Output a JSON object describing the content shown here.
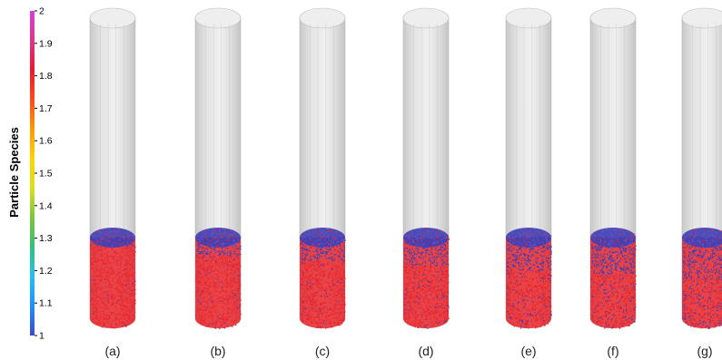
{
  "colorbar": {
    "title": "Particle Species",
    "ticks": [
      "2",
      "1.9",
      "1.8",
      "1.7",
      "1.6",
      "1.5",
      "1.4",
      "1.3",
      "1.2",
      "1.1",
      "1"
    ],
    "min": 1,
    "max": 2,
    "gradient": [
      "#3b4cc0",
      "#1e90ff",
      "#22c1ee",
      "#33c07a",
      "#7cc63a",
      "#d9e021",
      "#ffd400",
      "#ff9a00",
      "#ff4a1c",
      "#e8192c",
      "#e0348c",
      "#d63fd6"
    ]
  },
  "colors": {
    "species_1": "#3f3fb5",
    "species_2": "#e8262c",
    "cylinder": "#d9d9d9"
  },
  "panels": [
    {
      "label": "(a)",
      "blue_cap": 0.1,
      "mixing": 0.04
    },
    {
      "label": "(b)",
      "blue_cap": 0.22,
      "mixing": 0.1
    },
    {
      "label": "(c)",
      "blue_cap": 0.28,
      "mixing": 0.14
    },
    {
      "label": "(d)",
      "blue_cap": 0.34,
      "mixing": 0.22
    },
    {
      "label": "(e)",
      "blue_cap": 0.4,
      "mixing": 0.3
    },
    {
      "label": "(f)",
      "blue_cap": 0.44,
      "mixing": 0.4
    },
    {
      "label": "(g)",
      "blue_cap": 0.5,
      "mixing": 0.55
    }
  ]
}
